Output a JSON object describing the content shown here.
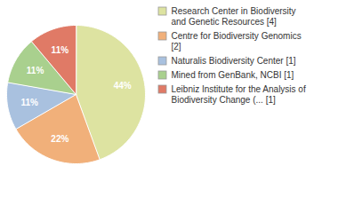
{
  "chart_data": {
    "type": "pie",
    "categories": [
      "Research Center in Biodiversity and Genetic Resources [4]",
      "Centre for Biodiversity Genomics [2]",
      "Naturalis Biodiversity Center [1]",
      "Mined from GenBank, NCBI [1]",
      "Leibniz Institute for the Analysis of Biodiversity Change (... [1]"
    ],
    "values": [
      44,
      22,
      11,
      11,
      11
    ],
    "value_labels": [
      "44%",
      "22%",
      "11%",
      "11%",
      "11%"
    ],
    "colors": [
      "#dde3a1",
      "#f1b07a",
      "#a9c1df",
      "#a9d08e",
      "#e07a66"
    ],
    "data_labels": true,
    "legend": "right"
  }
}
